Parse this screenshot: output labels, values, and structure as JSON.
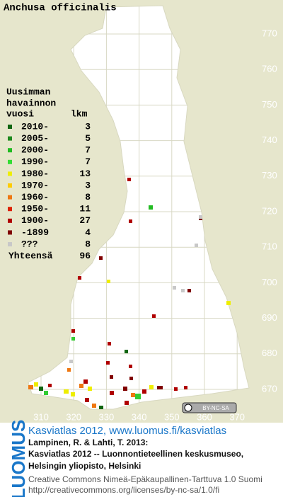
{
  "title": "Anchusa officinalis",
  "legend": {
    "heading": [
      "Uusimman",
      "havainnon",
      "vuosi"
    ],
    "count_heading": "lkm",
    "rows": [
      {
        "label": "2010-",
        "count": 3,
        "color": "#116611"
      },
      {
        "label": "2005-",
        "count": 5,
        "color": "#1e8a1e"
      },
      {
        "label": "2000-",
        "count": 7,
        "color": "#22bb22"
      },
      {
        "label": "1990-",
        "count": 7,
        "color": "#33dd33"
      },
      {
        "label": "1980-",
        "count": 13,
        "color": "#eeee00"
      },
      {
        "label": "1970-",
        "count": 3,
        "color": "#ffcc00"
      },
      {
        "label": "1960-",
        "count": 8,
        "color": "#ee7711"
      },
      {
        "label": "1950-",
        "count": 11,
        "color": "#dd2200"
      },
      {
        "label": "1900-",
        "count": 27,
        "color": "#b00000"
      },
      {
        "label": "-1899",
        "count": 4,
        "color": "#800000"
      },
      {
        "label": "???",
        "count": 8,
        "color": "#c8c8c8"
      }
    ],
    "total_label": "Yhteensä",
    "total": 96
  },
  "axes": {
    "yticks": [
      770,
      760,
      750,
      740,
      730,
      720,
      710,
      700,
      690,
      680,
      670
    ],
    "xticks": [
      310,
      320,
      330,
      340,
      350,
      360,
      370
    ]
  },
  "license_badge": "BY-NC-SA",
  "brand": "LUOMUS",
  "citation": {
    "link": "Kasviatlas 2012, www.luomus.fi/kasviatlas",
    "lines": [
      "Lampinen, R. & Lahti, T. 2013:",
      "Kasviatlas 2012 -- Luonnontieteellinen keskusmuseo,",
      "Helsingin yliopisto, Helsinki"
    ]
  },
  "license": [
    "Creative Commons Nimeä-Epäkaupallinen-Tarttuva 1.0 Suomi",
    "http://creativecommons.org/licenses/by-nc-sa/1.0/fi"
  ]
}
